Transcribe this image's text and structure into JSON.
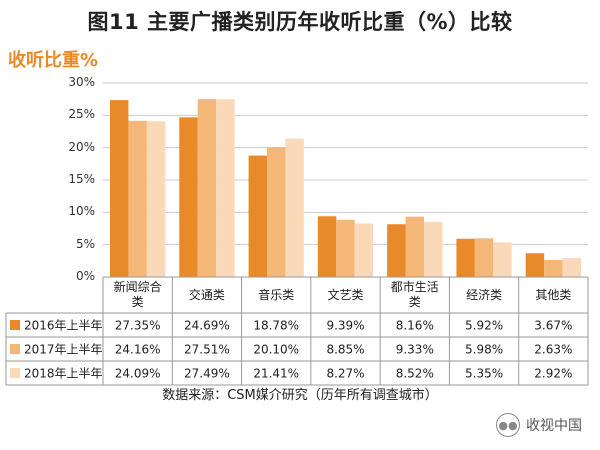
{
  "header": {
    "title": "图11 主要广播类别历年收听比重（%）比较",
    "unit_label": "收听比重%"
  },
  "footer": {
    "source": "数据来源：CSM媒介研究（历年所有调查城市）",
    "watermark": "收视中国",
    "watermark_icon": "wechat-icon"
  },
  "colors": {
    "s2016": "#e8892a",
    "s2017": "#f4b777",
    "s2018": "#fad9b8",
    "grid": "#cccccc",
    "table_border": "#9a9a9a"
  },
  "chart_data": {
    "type": "bar",
    "title": "图11 主要广播类别历年收听比重（%）比较",
    "ylabel": "收听比重%",
    "ylim": [
      0,
      30
    ],
    "yticks": [
      "0%",
      "5%",
      "10%",
      "15%",
      "20%",
      "25%",
      "30%"
    ],
    "grid": true,
    "legend": "table",
    "categories": [
      [
        "新闻综合",
        "类"
      ],
      [
        "交通类"
      ],
      [
        "音乐类"
      ],
      [
        "文艺类"
      ],
      [
        "都市生活",
        "类"
      ],
      [
        "经济类"
      ],
      [
        "其他类"
      ]
    ],
    "series": [
      {
        "name": "2016年上半年",
        "values": [
          27.35,
          24.69,
          18.78,
          9.39,
          8.16,
          5.92,
          3.67
        ],
        "labels": [
          "27.35%",
          "24.69%",
          "18.78%",
          "9.39%",
          "8.16%",
          "5.92%",
          "3.67%"
        ]
      },
      {
        "name": "2017年上半年",
        "values": [
          24.16,
          27.51,
          20.1,
          8.85,
          9.33,
          5.98,
          2.63
        ],
        "labels": [
          "24.16%",
          "27.51%",
          "20.10%",
          "8.85%",
          "9.33%",
          "5.98%",
          "2.63%"
        ]
      },
      {
        "name": "2018年上半年",
        "values": [
          24.09,
          27.49,
          21.41,
          8.27,
          8.52,
          5.35,
          2.92
        ],
        "labels": [
          "24.09%",
          "27.49%",
          "21.41%",
          "8.27%",
          "8.52%",
          "5.35%",
          "2.92%"
        ]
      }
    ]
  }
}
